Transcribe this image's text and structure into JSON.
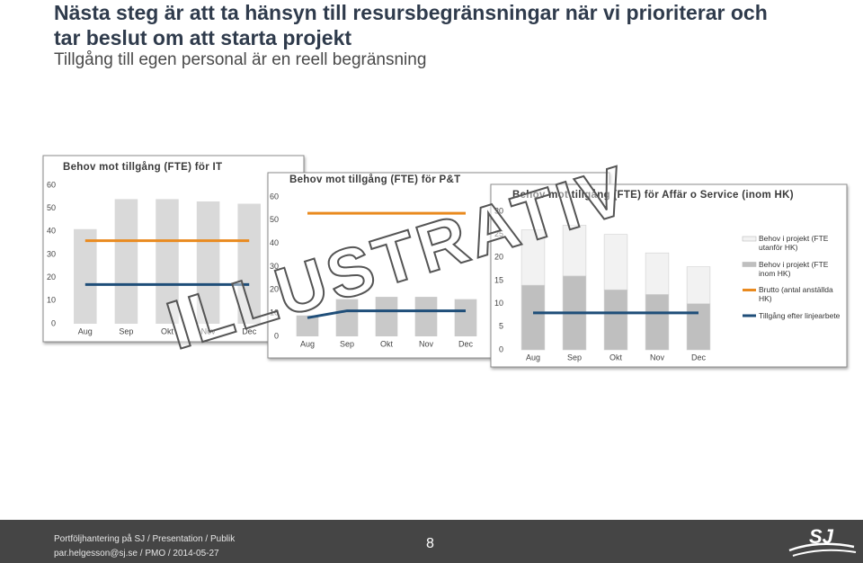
{
  "slide": {
    "title": "Nästa steg är att ta hänsyn till resursbegränsningar när vi prioriterar och tar beslut om att starta projekt",
    "subtitle": "Tillgång till egen personal är en reell begränsning",
    "watermark": "ILLUSTRATIV",
    "footer_line1": "Portföljhantering på SJ / Presentation / Publik",
    "footer_line2": "par.helgesson@sj.se / PMO / 2014-05-27",
    "page_number": "8",
    "logo": "SJ"
  },
  "chart_data": [
    {
      "type": "bar",
      "title": "Behov mot tillgång (FTE) för IT",
      "categories": [
        "Aug",
        "Sep",
        "Okt",
        "Nov",
        "Dec"
      ],
      "ylim": [
        0,
        60
      ],
      "yticks": [
        0,
        10,
        20,
        30,
        40,
        50,
        60
      ],
      "series": [
        {
          "type": "bar",
          "color": "#d9d9d9",
          "values": [
            41,
            54,
            54,
            53,
            52
          ]
        },
        {
          "type": "line",
          "color": "#e98a1f",
          "values": [
            36,
            36,
            36,
            36,
            36
          ]
        },
        {
          "type": "line",
          "color": "#1f4e79",
          "values": [
            17,
            17,
            17,
            17,
            17
          ]
        }
      ]
    },
    {
      "type": "bar",
      "title": "Behov mot tillgång (FTE) för P&T",
      "categories": [
        "Aug",
        "Sep",
        "Okt",
        "Nov",
        "Dec"
      ],
      "ylim": [
        0,
        60
      ],
      "yticks": [
        0,
        10,
        20,
        30,
        40,
        50,
        60
      ],
      "series": [
        {
          "type": "bar",
          "color": "#c9c9c9",
          "values": [
            9,
            16,
            17,
            17,
            16
          ]
        },
        {
          "type": "line",
          "color": "#e98a1f",
          "values": [
            53,
            53,
            53,
            53,
            53
          ]
        },
        {
          "type": "line",
          "color": "#1f4e79",
          "values": [
            8,
            11,
            11,
            11,
            11
          ]
        }
      ]
    },
    {
      "type": "bar",
      "title": "Behov mot tillgång (FTE) för Affär o Service (inom HK)",
      "categories": [
        "Aug",
        "Sep",
        "Okt",
        "Nov",
        "Dec"
      ],
      "stacked": true,
      "ylim": [
        0,
        30
      ],
      "yticks": [
        0,
        5,
        10,
        15,
        20,
        25,
        30
      ],
      "series": [
        {
          "name": "Behov i projekt (FTE inom HK)",
          "type": "bar",
          "color": "#bfbfbf",
          "values": [
            14,
            16,
            13,
            12,
            10
          ]
        },
        {
          "name": "Behov i projekt (FTE utanför HK)",
          "type": "bar",
          "color": "#f2f2f2",
          "values": [
            12,
            11,
            12,
            9,
            8
          ]
        },
        {
          "name": "Brutto (antal anställda HK)",
          "type": "line",
          "color": "#e98a1f",
          "values": [
            null,
            null,
            null,
            null,
            null
          ]
        },
        {
          "name": "Tillgång efter linjearbete",
          "type": "line",
          "color": "#1f4e79",
          "values": [
            8,
            8,
            8,
            8,
            8
          ]
        }
      ],
      "legend_order": [
        1,
        0,
        2,
        3
      ]
    }
  ]
}
